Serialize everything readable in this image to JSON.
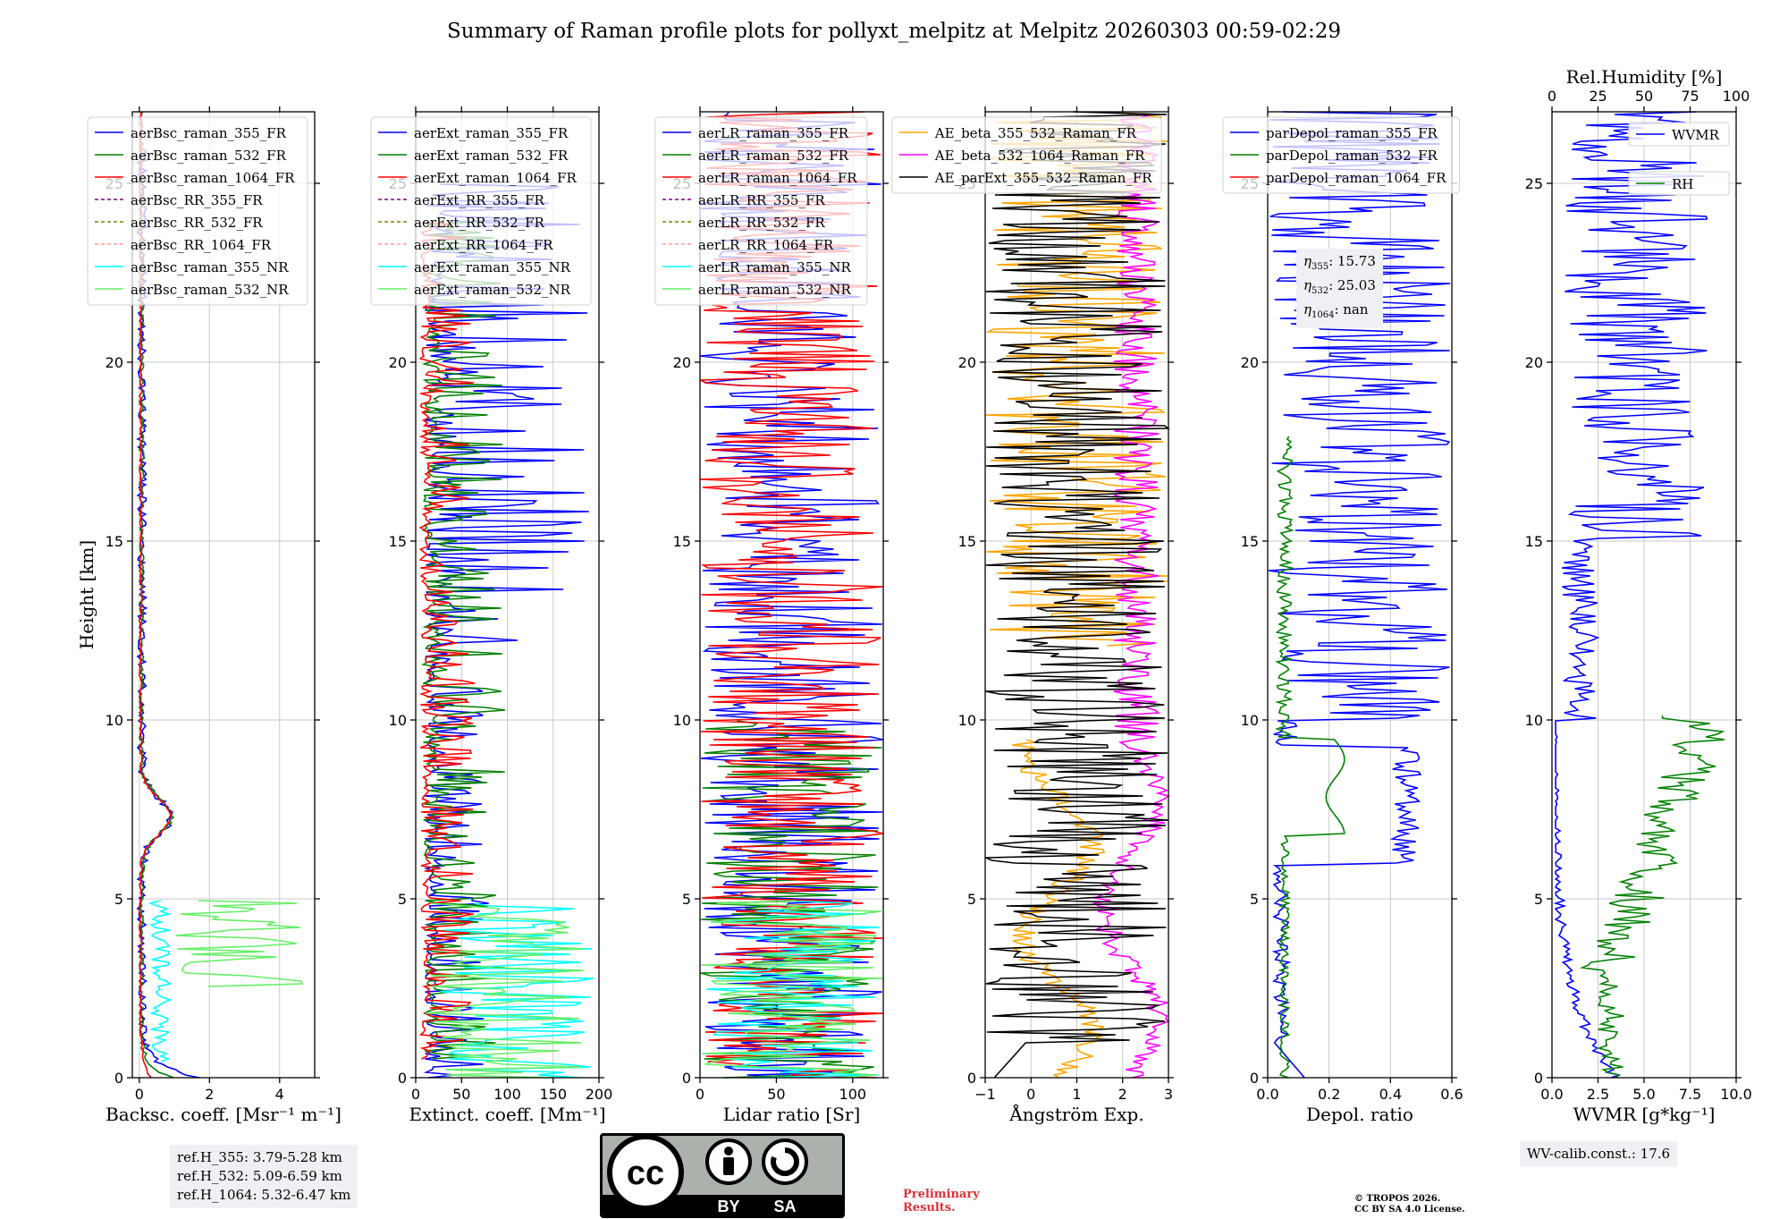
{
  "figure": {
    "title": "Summary of Raman profile plots for pollyxt_melpitz at Melpitz 20260303 00:59-02:29",
    "ref_heights": [
      "ref.H_355: 3.79-5.28 km",
      "ref.H_532: 5.09-6.59 km",
      "ref.H_1064: 5.32-6.47 km"
    ],
    "eta_labels": [
      {
        "sym": "η",
        "sub": "355",
        "value": ": 15.73"
      },
      {
        "sym": "η",
        "sub": "532",
        "value": ": 25.03"
      },
      {
        "sym": "η",
        "sub": "1064",
        "value": ": nan"
      }
    ],
    "wv_calib": "WV-calib.const.: 17.6",
    "preliminary": [
      "Preliminary",
      "Results."
    ],
    "copyright": [
      "© TROPOS 2026.",
      "CC BY SA 4.0 License."
    ],
    "license_badge": {
      "cc": "cc",
      "by": "BY",
      "sa": "SA"
    }
  },
  "chart_data": [
    {
      "type": "line",
      "id": "bsc",
      "xlabel": "Backsc. coeff. [Msr⁻¹ m⁻¹]",
      "ylabel": "Height [km]",
      "xlim": [
        -0.2,
        5
      ],
      "ylim": [
        0,
        27
      ],
      "xticks": [
        0,
        2,
        4
      ],
      "yticks": [
        0,
        5,
        10,
        15,
        20,
        25
      ],
      "legend_loc": "upper-left",
      "series": [
        {
          "name": "aerBsc_raman_355_FR",
          "color": "#0000ff",
          "style": "solid",
          "shape": "bsc_355"
        },
        {
          "name": "aerBsc_raman_532_FR",
          "color": "#008000",
          "style": "solid",
          "shape": "bsc_532"
        },
        {
          "name": "aerBsc_raman_1064_FR",
          "color": "#ff0000",
          "style": "solid",
          "shape": "bsc_1064"
        },
        {
          "name": "aerBsc_RR_355_FR",
          "color": "#800080",
          "style": "dashed",
          "shape": "none"
        },
        {
          "name": "aerBsc_RR_532_FR",
          "color": "#808000",
          "style": "dashed",
          "shape": "none"
        },
        {
          "name": "aerBsc_RR_1064_FR",
          "color": "#ff9a9a",
          "style": "dashed",
          "shape": "none"
        },
        {
          "name": "aerBsc_raman_355_NR",
          "color": "#00ffff",
          "style": "solid",
          "shape": "bsc_nr355"
        },
        {
          "name": "aerBsc_raman_532_NR",
          "color": "#66ee66",
          "style": "solid",
          "shape": "bsc_nr532"
        }
      ]
    },
    {
      "type": "line",
      "id": "ext",
      "xlabel": "Extinct. coeff. [Mm⁻¹]",
      "xlim": [
        0,
        200
      ],
      "ylim": [
        0,
        27
      ],
      "xticks": [
        0,
        50,
        100,
        150,
        200
      ],
      "yticks": [
        0,
        5,
        10,
        15,
        20,
        25
      ],
      "legend_loc": "upper-left",
      "series": [
        {
          "name": "aerExt_raman_355_FR",
          "color": "#0000ff",
          "style": "solid",
          "shape": "ext_355"
        },
        {
          "name": "aerExt_raman_532_FR",
          "color": "#008000",
          "style": "solid",
          "shape": "ext_532"
        },
        {
          "name": "aerExt_raman_1064_FR",
          "color": "#ff0000",
          "style": "solid",
          "shape": "ext_1064"
        },
        {
          "name": "aerExt_RR_355_FR",
          "color": "#800080",
          "style": "dashed",
          "shape": "none"
        },
        {
          "name": "aerExt_RR_532_FR",
          "color": "#808000",
          "style": "dashed",
          "shape": "none"
        },
        {
          "name": "aerExt_RR_1064_FR",
          "color": "#ff9a9a",
          "style": "dashed",
          "shape": "none"
        },
        {
          "name": "aerExt_raman_355_NR",
          "color": "#00ffff",
          "style": "solid",
          "shape": "ext_nr355"
        },
        {
          "name": "aerExt_raman_532_NR",
          "color": "#66ee66",
          "style": "solid",
          "shape": "ext_nr532"
        }
      ]
    },
    {
      "type": "line",
      "id": "lr",
      "xlabel": "Lidar ratio [Sr]",
      "xlim": [
        0,
        120
      ],
      "ylim": [
        0,
        27
      ],
      "xticks": [
        0,
        50,
        100
      ],
      "yticks": [
        0,
        5,
        10,
        15,
        20,
        25
      ],
      "legend_loc": "upper-left",
      "series": [
        {
          "name": "aerLR_raman_355_FR",
          "color": "#0000ff",
          "style": "solid",
          "shape": "lr_355"
        },
        {
          "name": "aerLR_raman_532_FR",
          "color": "#008000",
          "style": "solid",
          "shape": "lr_532"
        },
        {
          "name": "aerLR_raman_1064_FR",
          "color": "#ff0000",
          "style": "solid",
          "shape": "lr_1064"
        },
        {
          "name": "aerLR_RR_355_FR",
          "color": "#800080",
          "style": "dashed",
          "shape": "none"
        },
        {
          "name": "aerLR_RR_532_FR",
          "color": "#808000",
          "style": "dashed",
          "shape": "none"
        },
        {
          "name": "aerLR_RR_1064_FR",
          "color": "#ff9a9a",
          "style": "dashed",
          "shape": "none"
        },
        {
          "name": "aerLR_raman_355_NR",
          "color": "#00ffff",
          "style": "solid",
          "shape": "lr_nr355"
        },
        {
          "name": "aerLR_raman_532_NR",
          "color": "#66ee66",
          "style": "solid",
          "shape": "lr_nr532"
        }
      ]
    },
    {
      "type": "line",
      "id": "ae",
      "xlabel": "Ångström Exp.",
      "xlim": [
        -1,
        3
      ],
      "ylim": [
        0,
        27
      ],
      "xticks": [
        -1,
        0,
        1,
        2,
        3
      ],
      "yticks": [
        0,
        5,
        10,
        15,
        20,
        25
      ],
      "legend_loc": "upper-right",
      "series": [
        {
          "name": "AE_beta_355_532_Raman_FR",
          "color": "#ffa500",
          "style": "solid",
          "shape": "ae_orange"
        },
        {
          "name": "AE_beta_532_1064_Raman_FR",
          "color": "#ff00ff",
          "style": "solid",
          "shape": "ae_magenta"
        },
        {
          "name": "AE_parExt_355_532_Raman_FR",
          "color": "#000000",
          "style": "solid",
          "shape": "ae_black"
        }
      ]
    },
    {
      "type": "line",
      "id": "depol",
      "xlabel": "Depol. ratio",
      "xlim": [
        0,
        0.6
      ],
      "ylim": [
        0,
        27
      ],
      "xticks": [
        0.0,
        0.2,
        0.4,
        0.6
      ],
      "yticks": [
        0,
        5,
        10,
        15,
        20,
        25
      ],
      "legend_loc": "upper-left",
      "series": [
        {
          "name": "parDepol_raman_355_FR",
          "color": "#0000ff",
          "style": "solid",
          "shape": "dep_355"
        },
        {
          "name": "parDepol_raman_532_FR",
          "color": "#008000",
          "style": "solid",
          "shape": "dep_532"
        },
        {
          "name": "parDepol_raman_1064_FR",
          "color": "#ff0000",
          "style": "solid",
          "shape": "none"
        }
      ]
    },
    {
      "type": "line",
      "id": "wv",
      "xlabel": "WVMR [g*kg⁻¹]",
      "x2label": "Rel.Humidity [%]",
      "xlim": [
        0,
        10
      ],
      "x2lim": [
        0,
        100
      ],
      "ylim": [
        0,
        27
      ],
      "xticks": [
        0.0,
        2.5,
        5.0,
        7.5,
        10.0
      ],
      "x2ticks": [
        0,
        25,
        50,
        75,
        100
      ],
      "yticks": [
        0,
        5,
        10,
        15,
        20,
        25
      ],
      "legend_loc": "upper-right",
      "series": [
        {
          "name": "WVMR",
          "color": "#0000ff",
          "style": "solid",
          "shape": "wvmr"
        },
        {
          "name": "RH",
          "color": "#008000",
          "style": "solid",
          "shape": "rh"
        }
      ]
    }
  ]
}
